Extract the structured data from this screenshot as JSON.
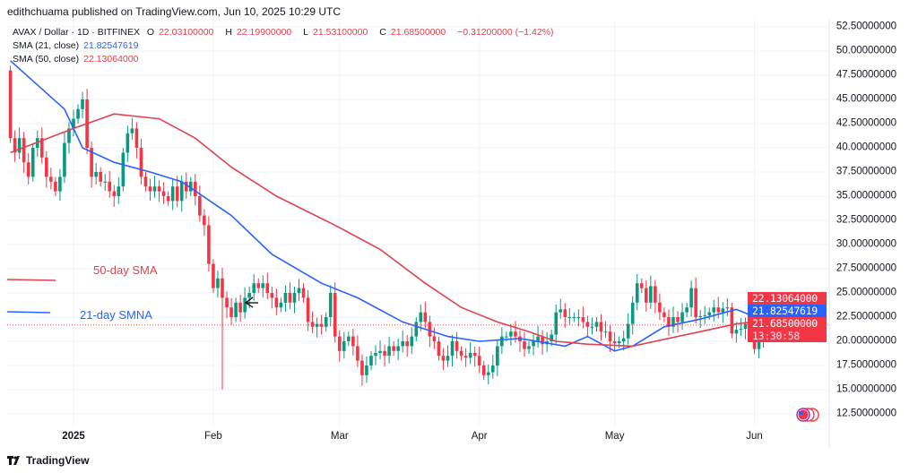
{
  "header": {
    "published": "edithchuama published on TradingView.com, Jun 10, 2025 10:29 UTC"
  },
  "legend": {
    "symbol": "AVAX / Dollar · 1D · BITFINEX",
    "o_label": "O",
    "o": "22.03100000",
    "h_label": "H",
    "h": "22.19900000",
    "l_label": "L",
    "l": "21.53100000",
    "c_label": "C",
    "c": "21.68500000",
    "change": "−0.31200000 (−1.42%)",
    "sma21_label": "SMA (21, close)",
    "sma21_value": "21.82547619",
    "sma50_label": "SMA (50, close)",
    "sma50_value": "22.13064000"
  },
  "annotations": {
    "sma50": "50-day SMA",
    "sma21": "21-day SMNA"
  },
  "price_tags": {
    "sma50": "22.13064000",
    "sma21": "21.82547619",
    "last": "21.68500000",
    "countdown": "13:30:58"
  },
  "footer": {
    "logo": "TradingView"
  },
  "colors": {
    "up": "#089981",
    "down": "#f23645",
    "sma21": "#2962ff",
    "sma50": "#e0424f"
  },
  "chart_data": {
    "type": "candlestick",
    "title": "AVAX / Dollar · 1D · BITFINEX",
    "ylim": [
      10.5,
      53.5
    ],
    "y_ticks": [
      "52.50000000",
      "50.00000000",
      "47.50000000",
      "45.00000000",
      "42.50000000",
      "40.00000000",
      "37.50000000",
      "35.00000000",
      "32.50000000",
      "30.00000000",
      "27.50000000",
      "25.00000000",
      "22.50000000",
      "20.00000000",
      "17.50000000",
      "15.00000000",
      "12.50000000"
    ],
    "x_ticks": [
      {
        "label": "2025",
        "day": 14
      },
      {
        "label": "Feb",
        "day": 45
      },
      {
        "label": "Mar",
        "day": 73
      },
      {
        "label": "Apr",
        "day": 104
      },
      {
        "label": "May",
        "day": 134
      },
      {
        "label": "Jun",
        "day": 165
      }
    ],
    "first_open": 48.0,
    "closes": [
      41,
      39.5,
      41,
      38.5,
      37,
      40,
      41,
      39,
      37,
      36.5,
      35.5,
      37,
      40.5,
      42,
      43,
      44,
      45,
      40,
      37,
      37.5,
      36.5,
      36.5,
      35.5,
      35,
      36,
      39.5,
      41.5,
      42,
      40,
      37,
      36,
      35.5,
      36,
      35.5,
      35,
      34.5,
      36,
      34.5,
      36.5,
      35.5,
      36.5,
      35,
      33,
      32,
      28,
      25.5,
      26.5,
      24.5,
      23.5,
      22.5,
      24,
      23,
      24.5,
      25,
      26,
      25.5,
      26,
      25,
      24.5,
      23.5,
      24,
      25,
      24,
      25,
      25.5,
      24.5,
      22,
      21.5,
      21.8,
      21.5,
      22.5,
      25,
      20.5,
      19,
      20,
      20.5,
      19.5,
      18,
      16.5,
      17.5,
      18.5,
      18.8,
      19,
      18.5,
      19.5,
      19,
      19.5,
      20,
      19.5,
      20.5,
      22,
      23,
      22,
      20.5,
      20,
      18.5,
      18,
      18.5,
      20,
      19,
      18.5,
      18.3,
      18.8,
      18.5,
      17.5,
      16.5,
      16.8,
      17.5,
      19.5,
      20.5,
      20.5,
      21,
      20.5,
      20,
      19.2,
      19.5,
      20,
      20.5,
      19.7,
      20,
      20.7,
      23,
      23.3,
      22.5,
      22.5,
      22.5,
      22.5,
      22,
      21.5,
      21.5,
      22,
      21,
      21,
      20,
      19.8,
      20,
      20.3,
      21.8,
      24,
      26,
      25.5,
      24,
      25.7,
      24,
      23,
      22.5,
      21.5,
      22.5,
      22,
      23,
      23.5,
      25.5,
      22.5,
      22.6,
      22.7,
      23,
      23.5,
      23,
      23.4,
      23.5,
      20.8,
      21.2,
      21.3,
      21.8,
      21.2,
      19.2,
      20,
      21.5,
      22.3,
      22.03,
      21.685
    ],
    "notable_lows": [
      {
        "day": 47,
        "low": 15.0
      }
    ],
    "series": [
      {
        "name": "SMA (21, close)",
        "points": [
          [
            0,
            49
          ],
          [
            12,
            44
          ],
          [
            16,
            40
          ],
          [
            23,
            38.5
          ],
          [
            31,
            37.5
          ],
          [
            38,
            36.5
          ],
          [
            49,
            33
          ],
          [
            58,
            29
          ],
          [
            69,
            26
          ],
          [
            77,
            24.5
          ],
          [
            87,
            22
          ],
          [
            97,
            20.5
          ],
          [
            104,
            20
          ],
          [
            113,
            20.3
          ],
          [
            123,
            19.5
          ],
          [
            128,
            20.5
          ],
          [
            134,
            19
          ],
          [
            138,
            19.5
          ],
          [
            145,
            21.5
          ],
          [
            153,
            22.3
          ],
          [
            161,
            23.3
          ],
          [
            168,
            22
          ],
          [
            174,
            21.83
          ]
        ]
      },
      {
        "name": "SMA (50, close)",
        "points": [
          [
            0,
            39.5
          ],
          [
            14,
            42
          ],
          [
            23,
            43.5
          ],
          [
            33,
            43
          ],
          [
            41,
            41
          ],
          [
            49,
            38
          ],
          [
            59,
            35
          ],
          [
            72,
            32
          ],
          [
            82,
            29.5
          ],
          [
            92,
            26
          ],
          [
            100,
            23.5
          ],
          [
            108,
            22
          ],
          [
            115,
            21
          ],
          [
            121,
            20
          ],
          [
            128,
            19.7
          ],
          [
            138,
            19.5
          ],
          [
            145,
            20.2
          ],
          [
            153,
            21
          ],
          [
            161,
            21.8
          ],
          [
            168,
            22.2
          ],
          [
            174,
            22.13
          ]
        ]
      }
    ]
  }
}
